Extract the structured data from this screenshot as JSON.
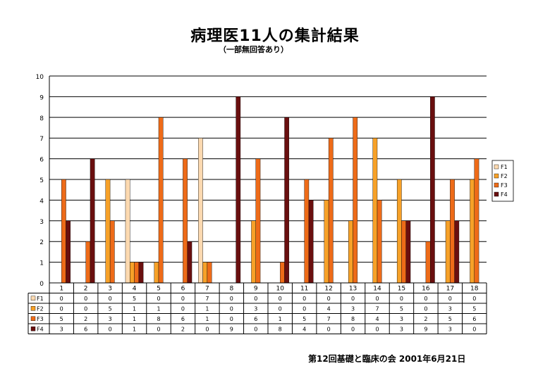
{
  "page": {
    "title": "病理医11人の集計結果",
    "subtitle": "（一部無回答あり）",
    "footer": "第12回基礎と臨床の会  2001年6月21日"
  },
  "chart_data": {
    "type": "bar",
    "title": "病理医11人の集計結果",
    "subtitle": "（一部無回答あり）",
    "categories": [
      "1",
      "2",
      "3",
      "4",
      "5",
      "6",
      "7",
      "8",
      "9",
      "10",
      "11",
      "12",
      "13",
      "14",
      "15",
      "16",
      "17",
      "18"
    ],
    "series": [
      {
        "name": "F1",
        "color": "#FCD9B0",
        "values": [
          0,
          0,
          0,
          5,
          0,
          0,
          7,
          0,
          0,
          0,
          0,
          0,
          0,
          0,
          0,
          0,
          0,
          0
        ]
      },
      {
        "name": "F2",
        "color": "#F7A128",
        "values": [
          0,
          0,
          5,
          1,
          1,
          0,
          1,
          0,
          3,
          0,
          0,
          4,
          3,
          7,
          5,
          0,
          3,
          5
        ]
      },
      {
        "name": "F3",
        "color": "#EE6B18",
        "values": [
          5,
          2,
          3,
          1,
          8,
          6,
          1,
          0,
          6,
          1,
          5,
          7,
          8,
          4,
          3,
          2,
          5,
          6
        ]
      },
      {
        "name": "F4",
        "color": "#6A0F0F",
        "values": [
          3,
          6,
          0,
          1,
          0,
          2,
          0,
          9,
          0,
          8,
          4,
          0,
          0,
          0,
          3,
          9,
          3,
          0
        ]
      }
    ],
    "ylim": [
      0,
      10
    ],
    "yticks": [
      0,
      1,
      2,
      3,
      4,
      5,
      6,
      7,
      8,
      9,
      10
    ],
    "grid": true,
    "legend_position": "right",
    "data_table": true
  }
}
